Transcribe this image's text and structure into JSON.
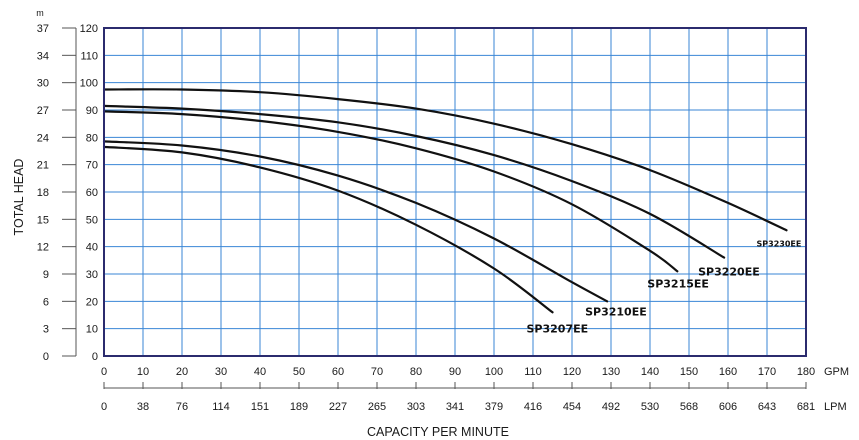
{
  "chart_data": {
    "type": "line",
    "xlabel": "CAPACITY PER MINUTE",
    "ylabel": "TOTAL HEAD",
    "x_unit_primary": "GPM",
    "x_unit_secondary": "LPM",
    "y_unit_meters": "m",
    "xlim": [
      0,
      180
    ],
    "ylim": [
      0,
      120
    ],
    "x_ticks_gpm": [
      "0",
      "10",
      "20",
      "30",
      "40",
      "50",
      "60",
      "70",
      "80",
      "90",
      "100",
      "110",
      "120",
      "130",
      "140",
      "150",
      "160",
      "170",
      "180"
    ],
    "x_ticks_lpm": [
      "0",
      "38",
      "76",
      "114",
      "151",
      "189",
      "227",
      "265",
      "303",
      "341",
      "379",
      "416",
      "454",
      "492",
      "530",
      "568",
      "606",
      "643",
      "681"
    ],
    "y_ticks_feet": [
      "0",
      "10",
      "20",
      "30",
      "40",
      "50",
      "60",
      "70",
      "80",
      "90",
      "100",
      "110",
      "120"
    ],
    "y_ticks_meters": [
      "0",
      "3",
      "6",
      "9",
      "12",
      "15",
      "18",
      "21",
      "24",
      "27",
      "30",
      "34",
      "37"
    ],
    "grid": true,
    "colors": {
      "grid": "#3a86d6",
      "frame": "#2b2b6e",
      "curve": "#111111"
    },
    "series": [
      {
        "name": "SP3207EE",
        "x": [
          0,
          20,
          40,
          60,
          80,
          100,
          115
        ],
        "y": [
          76.5,
          74.5,
          69,
          60.5,
          48,
          32,
          16
        ]
      },
      {
        "name": "SP3210EE",
        "x": [
          0,
          20,
          40,
          60,
          80,
          100,
          120,
          129
        ],
        "y": [
          78.5,
          77,
          73,
          66,
          56,
          43,
          27,
          20
        ]
      },
      {
        "name": "SP3215EE",
        "x": [
          0,
          20,
          40,
          60,
          80,
          100,
          120,
          140,
          147
        ],
        "y": [
          89.5,
          88.5,
          86,
          82,
          76,
          67.5,
          55.5,
          38.5,
          31
        ]
      },
      {
        "name": "SP3220EE",
        "x": [
          0,
          20,
          40,
          60,
          80,
          100,
          120,
          140,
          159
        ],
        "y": [
          91.5,
          90.5,
          88.5,
          85.5,
          80.5,
          73.5,
          64,
          52,
          36
        ]
      },
      {
        "name": "SP3230EE",
        "x": [
          0,
          20,
          40,
          60,
          80,
          100,
          120,
          140,
          160,
          175
        ],
        "y": [
          97.5,
          97.5,
          96.5,
          94,
          90.5,
          85,
          77.5,
          68,
          56,
          46
        ]
      }
    ]
  }
}
